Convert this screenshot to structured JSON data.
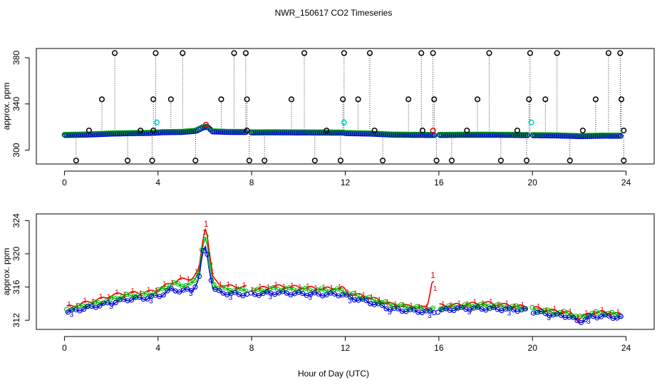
{
  "chart_data": [
    {
      "type": "scatter",
      "title": "NWR_150617  CO2 Timeseries",
      "xlabel": "",
      "ylabel": "approx. ppm",
      "xlim": [
        -1.2,
        25.2
      ],
      "ylim": [
        288,
        388
      ],
      "xticks": [
        0,
        4,
        8,
        12,
        16,
        20,
        24
      ],
      "yticks": [
        300,
        340,
        380
      ],
      "legend": "none",
      "baseline": [
        [
          0,
          313.4
        ],
        [
          0.5,
          313.6
        ],
        [
          1,
          313.8
        ],
        [
          1.5,
          314.2
        ],
        [
          2,
          314.6
        ],
        [
          3,
          315
        ],
        [
          3.5,
          315.1
        ],
        [
          3.8,
          315.3
        ],
        [
          4.2,
          315.8
        ],
        [
          5,
          316
        ],
        [
          5.6,
          317
        ],
        [
          5.9,
          320
        ],
        [
          6.1,
          320.5
        ],
        [
          6.3,
          316.5
        ],
        [
          7,
          316
        ],
        [
          7.8,
          316
        ],
        [
          8,
          315.6
        ],
        [
          9,
          315.7
        ],
        [
          10,
          315.6
        ],
        [
          11,
          315.5
        ],
        [
          11.9,
          315.4
        ],
        [
          12,
          315
        ],
        [
          13,
          314.6
        ],
        [
          14,
          313.7
        ],
        [
          15,
          313.5
        ],
        [
          16,
          313.4
        ],
        [
          17,
          313.6
        ],
        [
          18,
          313.6
        ],
        [
          19,
          313.5
        ],
        [
          20,
          313.2
        ],
        [
          21,
          313
        ],
        [
          22,
          312.4
        ],
        [
          23,
          312.8
        ],
        [
          23.8,
          312.7
        ]
      ],
      "high_outliers": [
        [
          1.6,
          344
        ],
        [
          2.15,
          384
        ],
        [
          3.8,
          344
        ],
        [
          3.9,
          384
        ],
        [
          4.55,
          344
        ],
        [
          5.05,
          384
        ],
        [
          6.7,
          344
        ],
        [
          7.25,
          384
        ],
        [
          7.75,
          384
        ],
        [
          7.8,
          344
        ],
        [
          9.7,
          344
        ],
        [
          10.25,
          384
        ],
        [
          11.9,
          344
        ],
        [
          11.95,
          384
        ],
        [
          12.55,
          344
        ],
        [
          13.05,
          384
        ],
        [
          14.7,
          344
        ],
        [
          15.25,
          384
        ],
        [
          15.75,
          384
        ],
        [
          15.8,
          344
        ],
        [
          17.65,
          344
        ],
        [
          18.15,
          384
        ],
        [
          19.85,
          344
        ],
        [
          19.9,
          384
        ],
        [
          20.55,
          344
        ],
        [
          21.05,
          384
        ],
        [
          22.7,
          344
        ],
        [
          23.25,
          384
        ],
        [
          23.75,
          384
        ],
        [
          23.8,
          344
        ]
      ],
      "low_outliers": [
        [
          0.5,
          291
        ],
        [
          2.7,
          291
        ],
        [
          3.75,
          291
        ],
        [
          5.6,
          291
        ],
        [
          7.9,
          291
        ],
        [
          8.55,
          291
        ],
        [
          10.7,
          291
        ],
        [
          11.8,
          291
        ],
        [
          13.6,
          291
        ],
        [
          15.9,
          291
        ],
        [
          16.55,
          291
        ],
        [
          18.65,
          291
        ],
        [
          19.75,
          291
        ],
        [
          21.6,
          291
        ],
        [
          23.9,
          291
        ]
      ],
      "mid_outliers": [
        [
          1.05,
          317
        ],
        [
          3.25,
          317
        ],
        [
          3.8,
          317
        ],
        [
          7.8,
          317
        ],
        [
          11.2,
          317
        ],
        [
          13.25,
          317
        ],
        [
          15.3,
          317
        ],
        [
          17.2,
          317
        ],
        [
          19.35,
          317
        ],
        [
          22.15,
          317
        ],
        [
          23.9,
          317
        ]
      ],
      "cyan_points": [
        [
          3.95,
          324
        ],
        [
          11.95,
          324
        ],
        [
          19.95,
          324
        ]
      ],
      "red_points": [
        [
          6.05,
          322
        ],
        [
          15.75,
          317
        ]
      ]
    },
    {
      "type": "line",
      "title": "",
      "xlabel": "Hour of Day (UTC)",
      "ylabel": "approx. ppm",
      "xlim": [
        -1.2,
        25.2
      ],
      "ylim": [
        310.9,
        324.8
      ],
      "xticks": [
        0,
        4,
        8,
        12,
        16,
        20,
        24
      ],
      "yticks": [
        312,
        316,
        320,
        324
      ],
      "legend": "none",
      "series": [
        {
          "name": "1",
          "color": "#ee0000",
          "values": [
            [
              0.1,
              313.6
            ],
            [
              0.5,
              313.8
            ],
            [
              1,
              314.2
            ],
            [
              1.5,
              314.5
            ],
            [
              2,
              315
            ],
            [
              2.5,
              315.2
            ],
            [
              3,
              315.3
            ],
            [
              3.6,
              315.4
            ],
            [
              4.1,
              315.8
            ],
            [
              4.6,
              316.6
            ],
            [
              5,
              316.9
            ],
            [
              5.5,
              317.1
            ],
            [
              5.75,
              318
            ],
            [
              5.9,
              321.5
            ],
            [
              6.05,
              323.6
            ],
            [
              6.2,
              320
            ],
            [
              6.35,
              317
            ],
            [
              6.6,
              316.4
            ],
            [
              7,
              316.1
            ],
            [
              7.8,
              316
            ],
            [
              8,
              315.7
            ],
            [
              9,
              316.1
            ],
            [
              10,
              316
            ],
            [
              11,
              315.8
            ],
            [
              11.9,
              315.9
            ],
            [
              12.1,
              315.3
            ],
            [
              13,
              314.8
            ],
            [
              14,
              313.9
            ],
            [
              15,
              313.6
            ],
            [
              15.5,
              313.5
            ],
            [
              15.75,
              317.4
            ],
            [
              15.95,
              313.8
            ],
            [
              16.5,
              313.8
            ],
            [
              17,
              313.9
            ],
            [
              18,
              314.1
            ],
            [
              19,
              313.8
            ],
            [
              19.8,
              313.6
            ],
            [
              20.1,
              313.5
            ],
            [
              21,
              313.1
            ],
            [
              21.5,
              313
            ],
            [
              22,
              312.2
            ],
            [
              22.5,
              312.9
            ],
            [
              23,
              313
            ],
            [
              23.8,
              312.7
            ]
          ]
        },
        {
          "name": "2",
          "color": "#00bb00",
          "values": [
            [
              0.1,
              313.3
            ],
            [
              0.5,
              313.5
            ],
            [
              1,
              313.9
            ],
            [
              1.5,
              314.1
            ],
            [
              2,
              314.5
            ],
            [
              2.5,
              314.9
            ],
            [
              3,
              315
            ],
            [
              3.6,
              315.1
            ],
            [
              4.1,
              315.6
            ],
            [
              4.6,
              316.4
            ],
            [
              5,
              316.2
            ],
            [
              5.5,
              316.4
            ],
            [
              5.75,
              318
            ],
            [
              5.9,
              321
            ],
            [
              6.05,
              322
            ],
            [
              6.2,
              319
            ],
            [
              6.35,
              316.5
            ],
            [
              6.6,
              315.9
            ],
            [
              7,
              315.7
            ],
            [
              7.8,
              315.6
            ],
            [
              8,
              315.5
            ],
            [
              9,
              315.8
            ],
            [
              10,
              315.7
            ],
            [
              11,
              315.6
            ],
            [
              11.9,
              315.6
            ],
            [
              12.1,
              315.2
            ],
            [
              13,
              314.6
            ],
            [
              14,
              313.8
            ],
            [
              15,
              313.5
            ],
            [
              15.5,
              313.4
            ],
            [
              15.75,
              313.3
            ],
            [
              15.95,
              313.5
            ],
            [
              16.5,
              313.6
            ],
            [
              17,
              313.7
            ],
            [
              18,
              313.8
            ],
            [
              19,
              313.6
            ],
            [
              19.8,
              313.5
            ],
            [
              20.1,
              313.3
            ],
            [
              21,
              312.9
            ],
            [
              21.5,
              312.9
            ],
            [
              22,
              312.3
            ],
            [
              22.5,
              312.8
            ],
            [
              23,
              312.9
            ],
            [
              23.8,
              312.6
            ]
          ]
        },
        {
          "name": "3",
          "color": "#0000dd",
          "values": [
            [
              0.1,
              313
            ],
            [
              0.5,
              313.2
            ],
            [
              1,
              313.5
            ],
            [
              1.5,
              313.8
            ],
            [
              2,
              314.1
            ],
            [
              2.5,
              314.4
            ],
            [
              3,
              314.6
            ],
            [
              3.6,
              314.7
            ],
            [
              4.1,
              315
            ],
            [
              4.6,
              315.7
            ],
            [
              5,
              315.5
            ],
            [
              5.5,
              315.7
            ],
            [
              5.75,
              317
            ],
            [
              5.9,
              320
            ],
            [
              6.05,
              321
            ],
            [
              6.2,
              318
            ],
            [
              6.35,
              315.8
            ],
            [
              6.6,
              315.4
            ],
            [
              7,
              315.2
            ],
            [
              7.8,
              315.1
            ],
            [
              8,
              315.1
            ],
            [
              9,
              315.3
            ],
            [
              10,
              315.2
            ],
            [
              11,
              315.1
            ],
            [
              11.9,
              315.1
            ],
            [
              12.1,
              314.8
            ],
            [
              13,
              314.2
            ],
            [
              14,
              313.3
            ],
            [
              15,
              313.1
            ],
            [
              15.5,
              313
            ],
            [
              15.75,
              313
            ],
            [
              15.95,
              313.1
            ],
            [
              16.5,
              313.3
            ],
            [
              17,
              313.4
            ],
            [
              18,
              313.4
            ],
            [
              19,
              313.3
            ],
            [
              19.8,
              313.2
            ],
            [
              20.1,
              313
            ],
            [
              21,
              312.6
            ],
            [
              21.5,
              312.5
            ],
            [
              22,
              311.8
            ],
            [
              22.5,
              312.4
            ],
            [
              23,
              312.5
            ],
            [
              23.8,
              312.3
            ]
          ]
        }
      ]
    }
  ]
}
